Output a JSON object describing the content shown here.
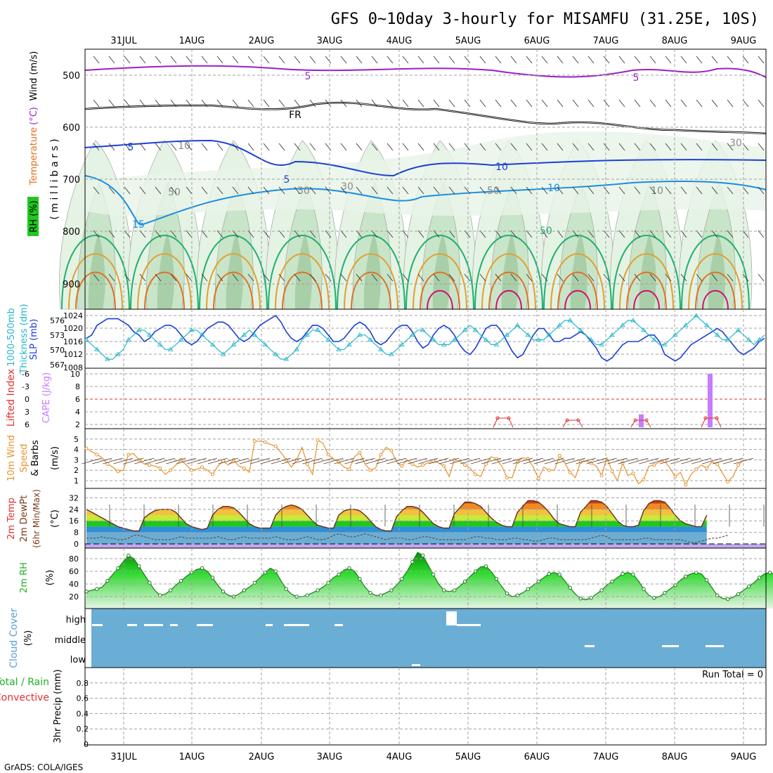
{
  "title": "GFS 0~10day 3-hourly for MISAMFU (31.25E, 10S)",
  "credit": "GrADS: COLA/IGES",
  "dates": [
    "31JUL",
    "1AUG",
    "2AUG",
    "3AUG",
    "4AUG",
    "5AUG",
    "6AUG",
    "7AUG",
    "8AUG",
    "9AUG"
  ],
  "colors": {
    "blue_series": "#1a3fd6",
    "cyan_series": "#25b8c8",
    "orange_series": "#e8922a",
    "purple": "#9a1fc8",
    "cape_bar": "#c77cff",
    "cloud": "#6aaed6",
    "rh_green": "#1fc81f",
    "red_label": "#e03030",
    "green_label": "#22b022",
    "grid": "#a0a0a0"
  },
  "chart_data": [
    {
      "type": "heatmap",
      "ylabel_parts": [
        "RH (%)",
        "Temperature",
        "(°C)",
        "Wind (m/s)"
      ],
      "ylabel_side": "( m i l l i b a r s )",
      "yticks": [
        "500",
        "600",
        "700",
        "800",
        "900"
      ],
      "ylim": [
        1000,
        450
      ],
      "contour_labels": [
        "5",
        "5",
        "FR",
        "5",
        "5",
        "10",
        "10",
        "15",
        "50",
        "50",
        "30",
        "30",
        "10",
        "10",
        "50",
        "30"
      ],
      "rh_levels": [
        30,
        50,
        70,
        90
      ]
    },
    {
      "type": "line",
      "ylabel_left": "1000-500mb",
      "ylabel_left2": "Thickness (dm)",
      "ylabel_right": "SLP (mb)",
      "yticks_left": [
        "576",
        "573",
        "570",
        "567"
      ],
      "yticks_right": [
        "1024",
        "1020",
        "1016",
        "1012",
        "1008"
      ],
      "series": [
        {
          "name": "SLP (mb)",
          "values": [
            1017,
            1018,
            1021,
            1022,
            1023,
            1023,
            1023,
            1022,
            1021,
            1019,
            1018,
            1016,
            1017,
            1019,
            1020,
            1021,
            1021,
            1020,
            1018,
            1016,
            1015,
            1016,
            1018,
            1020,
            1021,
            1022,
            1022,
            1021,
            1019,
            1017,
            1016,
            1017,
            1019,
            1021,
            1022,
            1023,
            1024,
            1022,
            1019,
            1017,
            1016,
            1017,
            1019,
            1021,
            1021,
            1020,
            1018,
            1016,
            1016,
            1017,
            1019,
            1021,
            1022,
            1021,
            1019,
            1016,
            1015,
            1016,
            1018,
            1020,
            1021,
            1021,
            1019,
            1016,
            1014,
            1015,
            1018,
            1020,
            1021,
            1020,
            1018,
            1015,
            1013,
            1012,
            1014,
            1017,
            1020,
            1021,
            1021,
            1019,
            1016,
            1013,
            1011,
            1012,
            1015,
            1018,
            1020,
            1020,
            1018,
            1016,
            1016,
            1017,
            1017,
            1018,
            1019,
            1018,
            1016,
            1014,
            1011,
            1010,
            1011,
            1013,
            1015,
            1016,
            1016,
            1016,
            1017,
            1018,
            1018,
            1016,
            1012,
            1011,
            1010,
            1011,
            1013,
            1015,
            1016,
            1017,
            1018,
            1019,
            1020,
            1019,
            1017,
            1015,
            1013,
            1012,
            1013,
            1014,
            1016,
            1017
          ]
        },
        {
          "name": "1000-500mb Thickness (dm)",
          "values": [
            572,
            571,
            570,
            569,
            568,
            568,
            569,
            570,
            572,
            573,
            574,
            574,
            573,
            572,
            571,
            570,
            570,
            571,
            572,
            573,
            574,
            574,
            573,
            572,
            571,
            570,
            569,
            570,
            571,
            572,
            573,
            574,
            573,
            572,
            571,
            570,
            569,
            568,
            568,
            569,
            570,
            572,
            573,
            574,
            574,
            573,
            572,
            571,
            570,
            570,
            571,
            572,
            573,
            573,
            572,
            571,
            570,
            569,
            569,
            570,
            571,
            572,
            573,
            574,
            574,
            573,
            572,
            571,
            571,
            571,
            572,
            573,
            574,
            575,
            574,
            573,
            572,
            571,
            571,
            572,
            573,
            574,
            575,
            574,
            573,
            572,
            572,
            572,
            573,
            574,
            575,
            576,
            576,
            575,
            574,
            573,
            572,
            571,
            571,
            572,
            573,
            574,
            575,
            576,
            576,
            575,
            574,
            573,
            572,
            571,
            571,
            572,
            573,
            574,
            575,
            576,
            577,
            576,
            575,
            574,
            573,
            572,
            572,
            573,
            574,
            573,
            572,
            571,
            572,
            573
          ]
        }
      ]
    },
    {
      "type": "bar",
      "ylabel_left": "Lifted Index",
      "ylabel_right": "CAPE (J/kg)",
      "yticks_left": [
        "-6",
        "-3",
        "0",
        "3",
        "6"
      ],
      "yticks_right": [
        "10",
        "8",
        "6",
        "4",
        "2"
      ],
      "cape_bars": [
        {
          "x": "7AUG 15Z",
          "value": 2
        },
        {
          "x": "8AUG 12Z",
          "value": 10
        }
      ],
      "lifted_index_minima": [
        {
          "x": "5AUG 12Z",
          "value": 5
        },
        {
          "x": "6AUG 15Z",
          "value": 4
        },
        {
          "x": "7AUG 12Z",
          "value": 4
        },
        {
          "x": "8AUG 12Z",
          "value": 5
        }
      ]
    },
    {
      "type": "line",
      "ylabel": "10m Wind",
      "ylabel2": "Speed",
      "ylabel3": "(m/s)",
      "ylabel4": "& Barbs",
      "yticks": [
        "5",
        "4",
        "3",
        "2",
        "1"
      ],
      "series": [
        {
          "name": "10m Wind Speed",
          "values": [
            4.1,
            3.8,
            3.5,
            3.2,
            2.6,
            2.3,
            1.9,
            2.0,
            3.5,
            3.6,
            3.0,
            2.6,
            2.5,
            2.4,
            2.2,
            1.6,
            2.0,
            2.5,
            3.0,
            2.5,
            2.0,
            2.1,
            2.3,
            2.0,
            1.6,
            2.4,
            2.9,
            2.5,
            3.0,
            2.4,
            2.2,
            1.8,
            4.8,
            4.8,
            4.7,
            4.5,
            4.3,
            3.7,
            3.0,
            2.3,
            3.0,
            4.2,
            2.6,
            1.6,
            4.9,
            4.6,
            3.5,
            3.1,
            2.8,
            2.3,
            2.1,
            3.3,
            3.7,
            2.6,
            2.0,
            2.2,
            3.5,
            4.2,
            3.9,
            2.8,
            2.4,
            3.0,
            2.6,
            2.3,
            2.5,
            2.7,
            2.9,
            2.7,
            2.4,
            1.4,
            3.0,
            2.9,
            2.5,
            2.2,
            1.6,
            1.4,
            2.6,
            3.3,
            3.1,
            2.4,
            1.3,
            1.3,
            2.8,
            3.2,
            3.1,
            2.3,
            1.2,
            2.3,
            2.0,
            2.0,
            3.4,
            2.7,
            1.8,
            1.3,
            2.8,
            2.9,
            2.7,
            2.4,
            1.5,
            3.2,
            1.9,
            1.0,
            2.7,
            1.5,
            1.7,
            0.7,
            1.1,
            2.4,
            2.5,
            2.8,
            2.9,
            2.2,
            1.4,
            1.8,
            0.6,
            1.6,
            2.1,
            2.5,
            2.2,
            2.8,
            2.6,
            1.7,
            0.9,
            1.4,
            2.5,
            3.0
          ]
        }
      ]
    },
    {
      "type": "area",
      "ylabel": "2m Temp",
      "ylabel2": "2m DewPt",
      "ylabel3": "(6hr Min/Max)",
      "ylabel4": "(°C)",
      "yticks": [
        "32",
        "24",
        "16",
        "8",
        "0"
      ],
      "series": [
        {
          "name": "2m Temp",
          "values": [
            24,
            22,
            20,
            18,
            16,
            14,
            12,
            11,
            10,
            9,
            9,
            18,
            21,
            23,
            24,
            24,
            24,
            22,
            18,
            14,
            12,
            11,
            10,
            11,
            20,
            24,
            26,
            26,
            25,
            22,
            18,
            14,
            12,
            11,
            11,
            11,
            20,
            24,
            26,
            27,
            26,
            24,
            20,
            16,
            13,
            12,
            11,
            11,
            20,
            23,
            24,
            24,
            23,
            20,
            16,
            12,
            10,
            9,
            9,
            19,
            23,
            26,
            26,
            25,
            22,
            18,
            14,
            12,
            11,
            11,
            21,
            25,
            29,
            29,
            28,
            26,
            22,
            18,
            15,
            13,
            12,
            12,
            22,
            26,
            30,
            30,
            29,
            26,
            22,
            17,
            14,
            13,
            12,
            12,
            22,
            26,
            30,
            30,
            29,
            26,
            21,
            16,
            13,
            12,
            12,
            13,
            23,
            28,
            30,
            30,
            29,
            25,
            20,
            16,
            14,
            13,
            12,
            12,
            20
          ]
        },
        {
          "name": "2m DewPt",
          "values": [
            4,
            4,
            4,
            5,
            4,
            4,
            3,
            3,
            4,
            6,
            6,
            5,
            4,
            3,
            3,
            3,
            3,
            4,
            5,
            4,
            4,
            4,
            4,
            4,
            4,
            5,
            4,
            3,
            3,
            4,
            5,
            4,
            4,
            4,
            4,
            4,
            5,
            4,
            3,
            3,
            3,
            4,
            5,
            4,
            3,
            3,
            4,
            6,
            7,
            6,
            5,
            5,
            6,
            7,
            6,
            5,
            4,
            3,
            4,
            4,
            4,
            3,
            3,
            4,
            5,
            5,
            4,
            3,
            3,
            3,
            3,
            3,
            3,
            4,
            5,
            5,
            4,
            4,
            3,
            3,
            3,
            4,
            4,
            3,
            3,
            2,
            2,
            3,
            4,
            4,
            3,
            3,
            3,
            3,
            3,
            3,
            4,
            5,
            6,
            5,
            3,
            3,
            3,
            3,
            3,
            3,
            4,
            4,
            3,
            3,
            3,
            3,
            3,
            3,
            2,
            1,
            1,
            2,
            3,
            4,
            4,
            5,
            6
          ]
        }
      ]
    },
    {
      "type": "area",
      "ylabel": "2m RH",
      "ylabel2": "(%)",
      "yticks": [
        "80",
        "60",
        "40",
        "20"
      ],
      "series": [
        {
          "name": "2m RH",
          "values": [
            28,
            30,
            32,
            35,
            45,
            55,
            65,
            75,
            85,
            80,
            68,
            55,
            42,
            30,
            22,
            24,
            30,
            38,
            45,
            52,
            58,
            63,
            65,
            60,
            50,
            38,
            28,
            22,
            20,
            24,
            30,
            35,
            42,
            50,
            58,
            65,
            60,
            45,
            32,
            24,
            20,
            20,
            22,
            26,
            30,
            35,
            42,
            50,
            55,
            62,
            65,
            60,
            48,
            35,
            26,
            22,
            22,
            26,
            30,
            38,
            48,
            60,
            75,
            90,
            85,
            70,
            55,
            40,
            30,
            28,
            30,
            36,
            44,
            52,
            60,
            67,
            68,
            60,
            48,
            36,
            25,
            20,
            22,
            26,
            32,
            38,
            44,
            50,
            56,
            58,
            55,
            45,
            34,
            24,
            17,
            15,
            18,
            24,
            30,
            38,
            44,
            50,
            56,
            58,
            55,
            45,
            32,
            22,
            18,
            20,
            26,
            32,
            38,
            46,
            52,
            56,
            58,
            56,
            46,
            34,
            22,
            17,
            16,
            19,
            24,
            30,
            36,
            42,
            50,
            56,
            58,
            55,
            45
          ]
        }
      ]
    },
    {
      "type": "heatmap",
      "ylabel": "Cloud Cover",
      "ylabel2": "(%)",
      "yticks": [
        "high",
        "middle",
        "low"
      ]
    },
    {
      "type": "bar",
      "ylabel": "3hr Precip (mm)",
      "ylabel_left": "Total / Rain",
      "ylabel_left2": "Convective",
      "yticks": [
        "0.8",
        "0.6",
        "0.4",
        "0.2",
        "0"
      ],
      "ylim": [
        0,
        1
      ],
      "run_total": "Run Total = 0",
      "values": []
    }
  ]
}
